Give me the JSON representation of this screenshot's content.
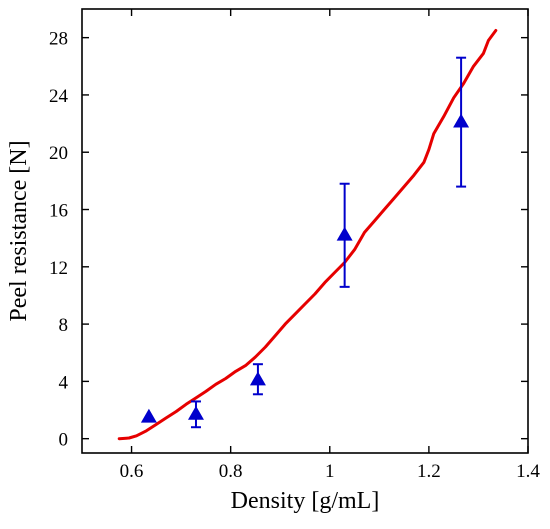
{
  "chart_data": {
    "type": "scatter",
    "title": "",
    "xlabel": "Density [g/mL]",
    "ylabel": "Peel resistance [N]",
    "xlim": [
      0.5,
      1.4
    ],
    "ylim": [
      -1,
      30
    ],
    "x_ticks": [
      {
        "value": 0.6,
        "label": "0.6"
      },
      {
        "value": 0.8,
        "label": "0.8"
      },
      {
        "value": 1.0,
        "label": "1"
      },
      {
        "value": 1.2,
        "label": "1.2"
      },
      {
        "value": 1.4,
        "label": "1.4"
      }
    ],
    "y_ticks": [
      {
        "value": 0,
        "label": "0"
      },
      {
        "value": 4,
        "label": "4"
      },
      {
        "value": 8,
        "label": "8"
      },
      {
        "value": 12,
        "label": "12"
      },
      {
        "value": 16,
        "label": "16"
      },
      {
        "value": 20,
        "label": "20"
      },
      {
        "value": 24,
        "label": "24"
      },
      {
        "value": 28,
        "label": "28"
      }
    ],
    "grid": false,
    "legend": "none",
    "series": [
      {
        "kind": "scatter-errorbar",
        "marker": "triangle",
        "color": "#0000cc",
        "points": [
          {
            "x": 0.635,
            "y": 1.5,
            "err_low": 1.5,
            "err_high": 1.5
          },
          {
            "x": 0.73,
            "y": 1.7,
            "err_low": 0.8,
            "err_high": 2.6
          },
          {
            "x": 0.855,
            "y": 4.1,
            "err_low": 3.1,
            "err_high": 5.2
          },
          {
            "x": 1.03,
            "y": 14.2,
            "err_low": 10.6,
            "err_high": 17.8
          },
          {
            "x": 1.265,
            "y": 22.1,
            "err_low": 17.6,
            "err_high": 26.6
          }
        ]
      },
      {
        "kind": "line",
        "color": "#e60000",
        "x": [
          0.575,
          0.595,
          0.61,
          0.63,
          0.65,
          0.67,
          0.69,
          0.71,
          0.73,
          0.75,
          0.77,
          0.79,
          0.81,
          0.83,
          0.85,
          0.87,
          0.89,
          0.91,
          0.93,
          0.95,
          0.97,
          0.99,
          1.01,
          1.03,
          1.05,
          1.065,
          1.07,
          1.09,
          1.11,
          1.13,
          1.15,
          1.17,
          1.19,
          1.2,
          1.21,
          1.23,
          1.25,
          1.27,
          1.29,
          1.31,
          1.32,
          1.335
        ],
        "y": [
          0.0,
          0.05,
          0.2,
          0.55,
          1.0,
          1.45,
          1.9,
          2.4,
          2.85,
          3.3,
          3.8,
          4.2,
          4.7,
          5.1,
          5.7,
          6.4,
          7.2,
          8.0,
          8.7,
          9.4,
          10.1,
          10.9,
          11.6,
          12.3,
          13.2,
          14.1,
          14.4,
          15.2,
          16.0,
          16.8,
          17.6,
          18.4,
          19.3,
          20.2,
          21.3,
          22.5,
          23.8,
          24.8,
          26.0,
          26.9,
          27.8,
          28.5
        ]
      }
    ]
  }
}
